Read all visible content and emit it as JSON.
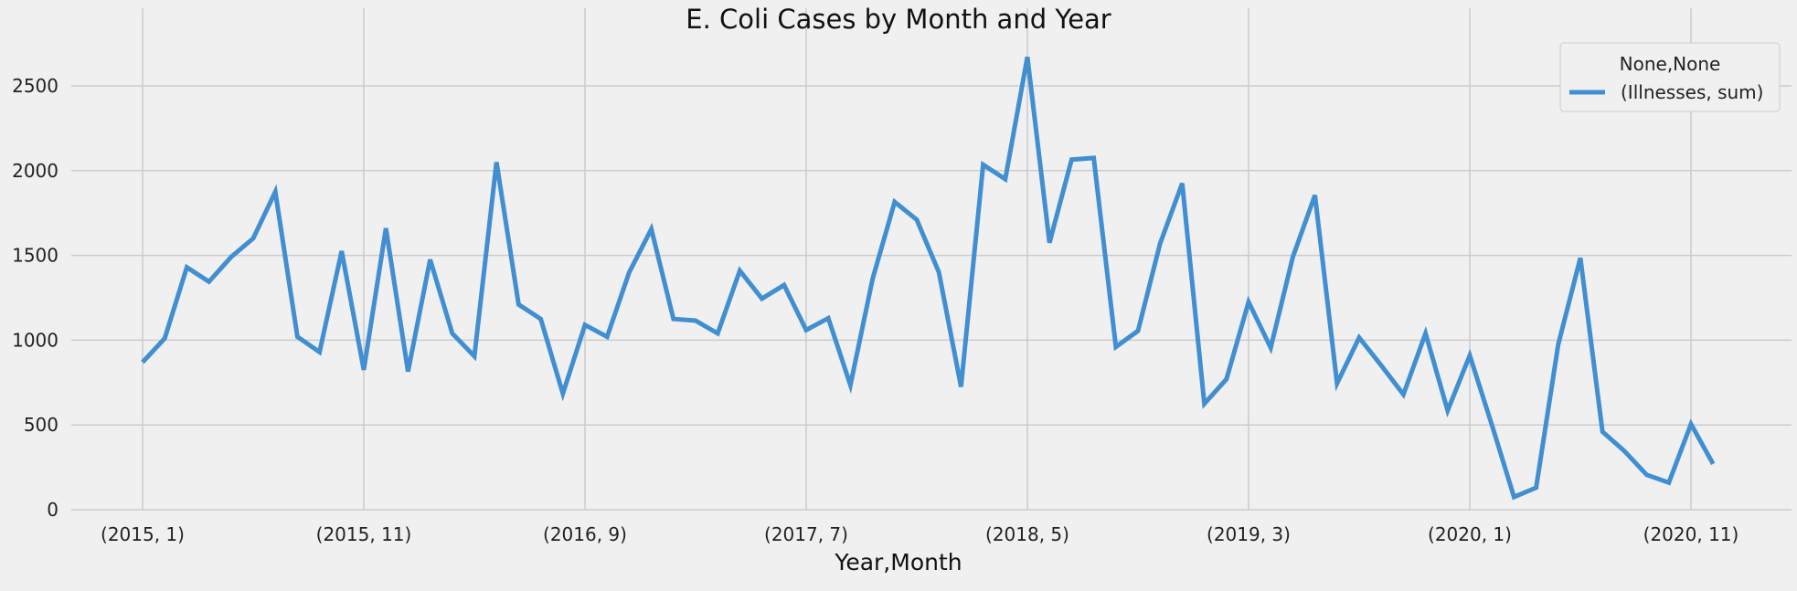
{
  "chart_data": {
    "type": "line",
    "title": "E. Coli Cases by Month and Year",
    "xlabel": "Year,Month",
    "ylabel": "",
    "ylim": [
      0,
      2780
    ],
    "yticks": [
      0,
      500,
      1000,
      1500,
      2000,
      2500
    ],
    "grid": true,
    "legend": {
      "title": "None,None",
      "placement": "top-right"
    },
    "x_tick_labels": [
      {
        "index": 0,
        "label": "(2015, 1)"
      },
      {
        "index": 10,
        "label": "(2015, 11)"
      },
      {
        "index": 20,
        "label": "(2016, 9)"
      },
      {
        "index": 30,
        "label": "(2017, 7)"
      },
      {
        "index": 40,
        "label": "(2018, 5)"
      },
      {
        "index": 50,
        "label": "(2019, 3)"
      },
      {
        "index": 60,
        "label": "(2020, 1)"
      },
      {
        "index": 70,
        "label": "(2020, 11)"
      }
    ],
    "x_count": 72,
    "series": [
      {
        "name": "(Illnesses, sum)",
        "color": "#418fd0",
        "values": [
          870,
          1010,
          1430,
          1345,
          1490,
          1600,
          1875,
          1020,
          930,
          1525,
          825,
          1660,
          815,
          1475,
          1040,
          905,
          2050,
          1210,
          1125,
          685,
          1090,
          1020,
          1400,
          1655,
          1125,
          1115,
          1040,
          1410,
          1245,
          1325,
          1060,
          1130,
          735,
          1360,
          1815,
          1710,
          1400,
          725,
          2035,
          1950,
          2670,
          1575,
          2065,
          2075,
          960,
          1055,
          1570,
          1925,
          625,
          770,
          1225,
          955,
          1490,
          1855,
          745,
          1015,
          850,
          680,
          1040,
          585,
          910,
          500,
          75,
          130,
          975,
          1485,
          460,
          345,
          205,
          160,
          505,
          270
        ]
      }
    ]
  }
}
